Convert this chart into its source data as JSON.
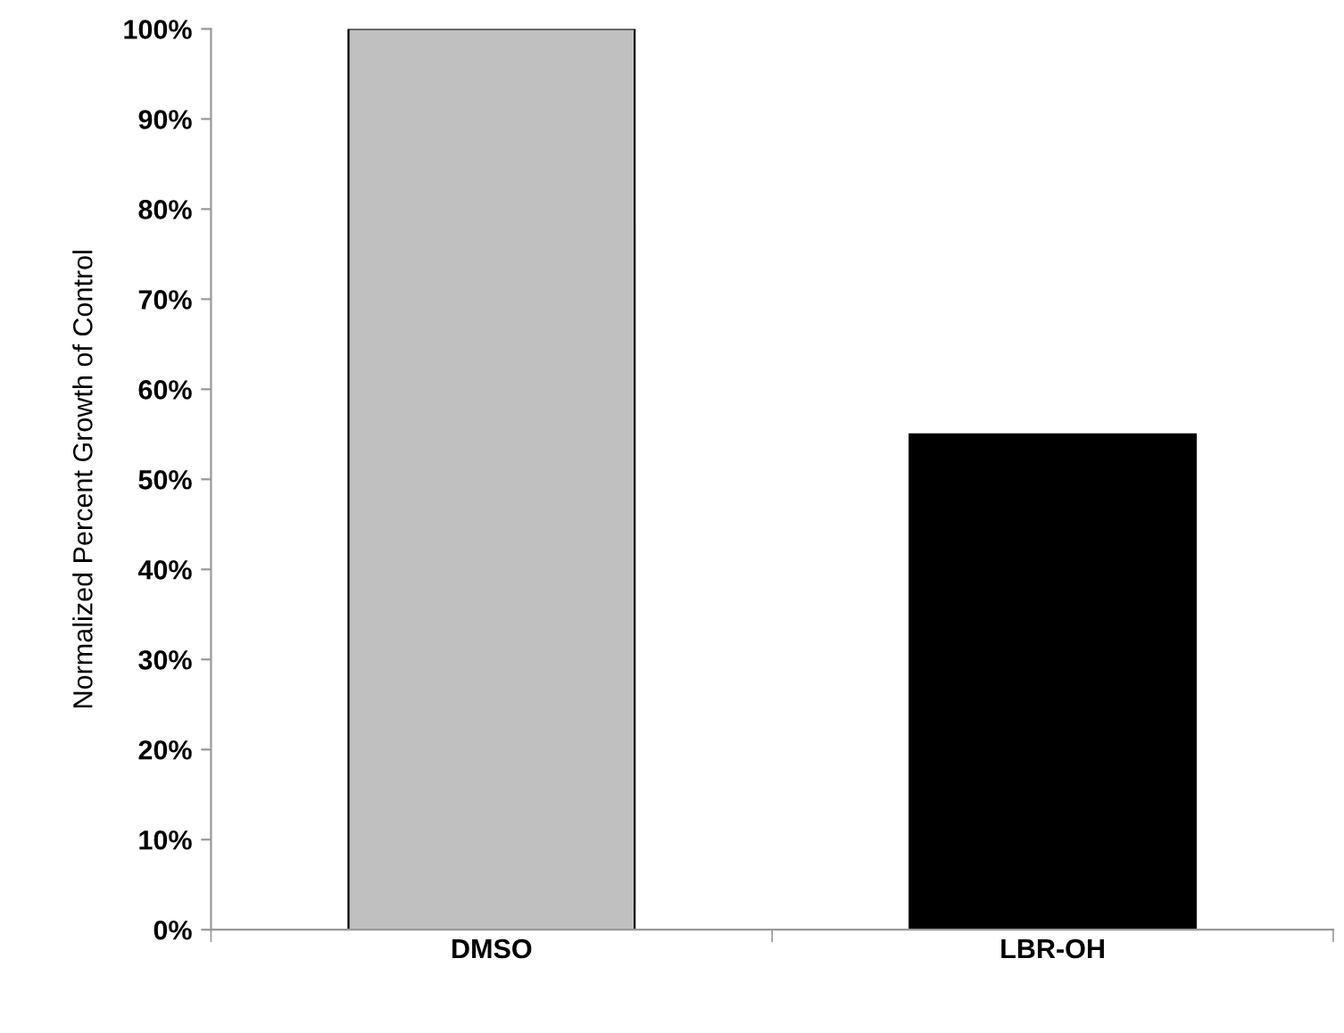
{
  "chart_data": {
    "type": "bar",
    "ylabel": "Normalized Percent Growth of Control",
    "categories": [
      "DMSO",
      "LBR-OH"
    ],
    "values": [
      100,
      55
    ],
    "colors": [
      "#c0c0c0",
      "#000000"
    ],
    "ylim": [
      0,
      100
    ],
    "yticks": [
      {
        "value": 0,
        "label": "0%"
      },
      {
        "value": 10,
        "label": "10%"
      },
      {
        "value": 20,
        "label": "20%"
      },
      {
        "value": 30,
        "label": "30%"
      },
      {
        "value": 40,
        "label": "40%"
      },
      {
        "value": 50,
        "label": "50%"
      },
      {
        "value": 60,
        "label": "60%"
      },
      {
        "value": 70,
        "label": "70%"
      },
      {
        "value": 80,
        "label": "80%"
      },
      {
        "value": 90,
        "label": "90%"
      },
      {
        "value": 100,
        "label": "100%"
      }
    ],
    "grid": false,
    "legend": false
  }
}
